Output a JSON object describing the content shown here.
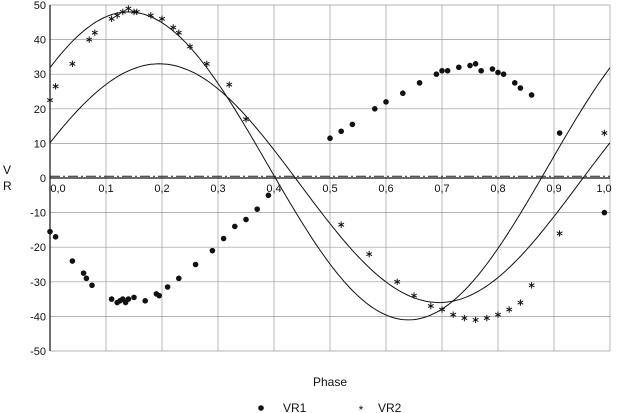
{
  "chart_data": {
    "type": "scatter",
    "title": "",
    "xlabel": "Phase",
    "ylabel": "V R",
    "xlim": [
      0,
      1.0
    ],
    "ylim": [
      -50,
      50
    ],
    "x_ticks": [
      "0,0",
      "0,1",
      "0,2",
      "0,3",
      "0,4",
      "0,5",
      "0,6",
      "0,7",
      "0,8",
      "0,9",
      "1,0"
    ],
    "y_ticks": [
      "50",
      "40",
      "30",
      "20",
      "10",
      "0",
      "-10",
      "-20",
      "-30",
      "-40",
      "-50"
    ],
    "grid": true,
    "legend_position": "bottom",
    "gamma_line": 0.5,
    "series": [
      {
        "name": "VR1",
        "marker": "dot",
        "x": [
          0.0,
          0.01,
          0.04,
          0.06,
          0.065,
          0.075,
          0.11,
          0.12,
          0.125,
          0.13,
          0.135,
          0.14,
          0.15,
          0.17,
          0.19,
          0.195,
          0.21,
          0.23,
          0.26,
          0.29,
          0.31,
          0.33,
          0.35,
          0.37,
          0.39,
          0.5,
          0.52,
          0.54,
          0.58,
          0.6,
          0.63,
          0.66,
          0.69,
          0.7,
          0.71,
          0.73,
          0.75,
          0.76,
          0.77,
          0.79,
          0.8,
          0.81,
          0.83,
          0.84,
          0.86,
          0.91,
          0.99
        ],
        "y": [
          -15.5,
          -17,
          -24,
          -27.5,
          -29,
          -31,
          -35,
          -36,
          -35.5,
          -35,
          -36,
          -35,
          -34.5,
          -35.5,
          -33.5,
          -34,
          -31.5,
          -29,
          -25,
          -21,
          -17.5,
          -14,
          -12,
          -9,
          -5,
          11.5,
          13.5,
          15.5,
          20,
          22,
          24.5,
          27.5,
          30,
          31,
          31,
          32,
          32.5,
          33,
          31,
          31.5,
          30.5,
          30,
          27.5,
          26,
          24,
          13,
          -10
        ]
      },
      {
        "name": "VR2",
        "marker": "star",
        "x": [
          0.0,
          0.01,
          0.04,
          0.07,
          0.08,
          0.11,
          0.12,
          0.13,
          0.14,
          0.15,
          0.155,
          0.18,
          0.2,
          0.22,
          0.23,
          0.25,
          0.28,
          0.32,
          0.35,
          0.52,
          0.57,
          0.62,
          0.65,
          0.68,
          0.7,
          0.72,
          0.74,
          0.76,
          0.78,
          0.8,
          0.82,
          0.84,
          0.86,
          0.91,
          0.99
        ],
        "y": [
          22.5,
          26.5,
          33,
          40,
          42,
          46,
          47,
          48,
          49,
          48,
          48,
          47,
          46,
          43.5,
          42,
          38,
          33,
          27,
          17,
          -13.5,
          -22,
          -30,
          -34,
          -37,
          -38,
          -39.5,
          -40.5,
          -41,
          -40.5,
          -39.5,
          -38,
          -36,
          -31,
          -16,
          13
        ]
      }
    ]
  }
}
